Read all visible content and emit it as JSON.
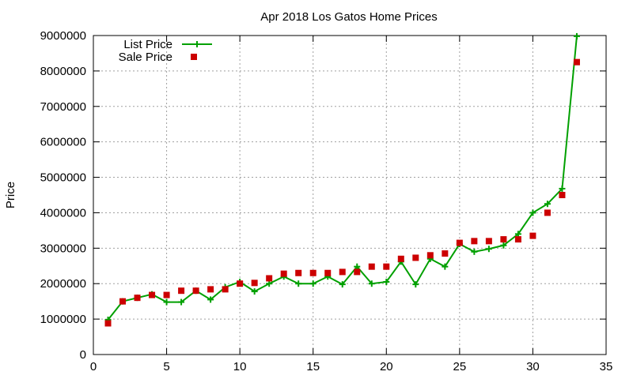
{
  "chart_data": {
    "type": "line",
    "title": "Apr 2018 Los Gatos Home Prices",
    "xlabel": "",
    "ylabel": "Price",
    "xlim": [
      0,
      35
    ],
    "ylim": [
      0,
      9000000
    ],
    "xticks": [
      0,
      5,
      10,
      15,
      20,
      25,
      30,
      35
    ],
    "yticks": [
      0,
      1000000,
      2000000,
      3000000,
      4000000,
      5000000,
      6000000,
      7000000,
      8000000,
      9000000
    ],
    "grid": true,
    "legend_position": "top-left",
    "x": [
      1,
      2,
      3,
      4,
      5,
      6,
      7,
      8,
      9,
      10,
      11,
      12,
      13,
      14,
      15,
      16,
      17,
      18,
      19,
      20,
      21,
      22,
      23,
      24,
      25,
      26,
      27,
      28,
      29,
      30,
      31,
      32,
      33
    ],
    "series": [
      {
        "name": "List Price",
        "style": "line-with-plus-markers",
        "color": "#00a000",
        "values": [
          980000,
          1500000,
          1600000,
          1700000,
          1480000,
          1480000,
          1800000,
          1550000,
          1900000,
          2050000,
          1780000,
          2000000,
          2200000,
          2000000,
          2000000,
          2200000,
          1980000,
          2480000,
          2000000,
          2050000,
          2620000,
          1980000,
          2700000,
          2480000,
          3120000,
          2900000,
          2980000,
          3080000,
          3400000,
          4000000,
          4250000,
          4680000,
          8980000
        ]
      },
      {
        "name": "Sale Price",
        "style": "square-markers",
        "color": "#cc0000",
        "values": [
          880000,
          1500000,
          1600000,
          1680000,
          1680000,
          1800000,
          1800000,
          1840000,
          1840000,
          2000000,
          2020000,
          2150000,
          2280000,
          2300000,
          2300000,
          2300000,
          2330000,
          2330000,
          2480000,
          2480000,
          2700000,
          2730000,
          2800000,
          2850000,
          3150000,
          3200000,
          3200000,
          3250000,
          3250000,
          3350000,
          4000000,
          4500000,
          8250000
        ]
      }
    ]
  }
}
